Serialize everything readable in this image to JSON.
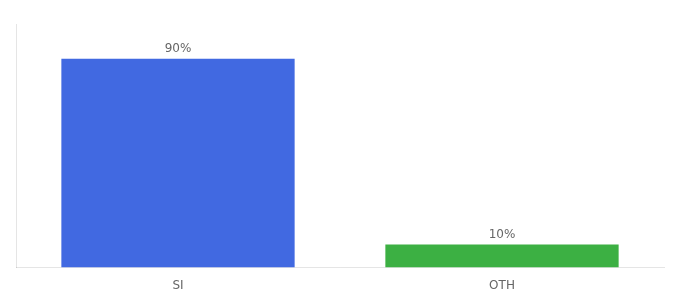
{
  "chart_data": {
    "type": "bar",
    "categories": [
      "SI",
      "OTH"
    ],
    "values": [
      90,
      10
    ],
    "value_labels": [
      "90%",
      "10%"
    ],
    "colors": [
      "#4169e1",
      "#3cb043"
    ],
    "ylim": [
      0,
      105
    ],
    "data_labels": true,
    "tick_labels": "x",
    "grid": false
  }
}
